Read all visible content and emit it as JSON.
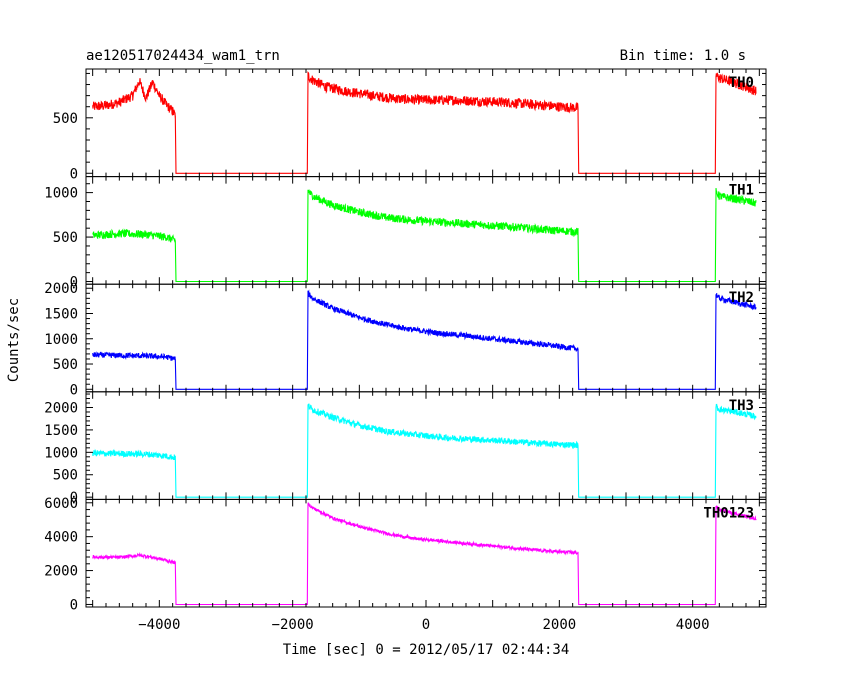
{
  "chart_data": {
    "type": "line",
    "title": "ae120517024434_wam1_trn",
    "subtitle": "Bin time: 1.0 s",
    "xlabel": "Time [sec] 0 = 2012/05/17 02:44:34",
    "ylabel": "Counts/sec",
    "xlim": [
      -5100,
      5100
    ],
    "x_ticks": [
      -4000,
      -2000,
      0,
      2000,
      4000
    ],
    "x_tick_labels": [
      "−4000",
      "−2000",
      "0",
      "2000",
      "4000"
    ],
    "grid": false,
    "panels": [
      {
        "name": "TH0",
        "color": "#ff0000",
        "ylim": [
          -30,
          940
        ],
        "y_ticks": [
          0,
          500
        ],
        "y_tick_labels": [
          "0",
          "500"
        ],
        "x": [
          -5000,
          -4800,
          -4600,
          -4400,
          -4300,
          -4200,
          -4100,
          -4000,
          -3900,
          -3800,
          -3760,
          -3750,
          -1780,
          -1770,
          -1700,
          -1500,
          -1200,
          -800,
          -400,
          0,
          400,
          800,
          1200,
          1600,
          2000,
          2280,
          2290,
          4340,
          4350,
          4400,
          4600,
          4800,
          4950
        ],
        "y": [
          600,
          610,
          640,
          700,
          830,
          680,
          820,
          700,
          620,
          560,
          520,
          0,
          0,
          880,
          840,
          780,
          740,
          700,
          670,
          660,
          660,
          650,
          640,
          620,
          600,
          590,
          0,
          0,
          880,
          860,
          820,
          780,
          740
        ],
        "noise": 45
      },
      {
        "name": "TH1",
        "color": "#00ff00",
        "ylim": [
          -30,
          1180
        ],
        "y_ticks": [
          0,
          500,
          1000
        ],
        "y_tick_labels": [
          "0",
          "500",
          "1000"
        ],
        "x": [
          -5000,
          -4600,
          -4200,
          -3900,
          -3760,
          -3750,
          -1780,
          -1770,
          -1700,
          -1400,
          -1000,
          -600,
          -200,
          200,
          600,
          1000,
          1400,
          1800,
          2280,
          2290,
          4340,
          4350,
          4400,
          4700,
          4950
        ],
        "y": [
          520,
          540,
          530,
          500,
          460,
          0,
          0,
          1020,
          960,
          860,
          780,
          720,
          690,
          670,
          650,
          630,
          610,
          580,
          560,
          0,
          0,
          1010,
          960,
          920,
          880
        ],
        "noise": 45
      },
      {
        "name": "TH2",
        "color": "#0000ff",
        "ylim": [
          -50,
          2080
        ],
        "y_ticks": [
          0,
          500,
          1000,
          1500,
          2000
        ],
        "y_tick_labels": [
          "0",
          "500",
          "1000",
          "1500",
          "2000"
        ],
        "x": [
          -5000,
          -4600,
          -4200,
          -3900,
          -3760,
          -3750,
          -1780,
          -1770,
          -1700,
          -1400,
          -1000,
          -600,
          -200,
          200,
          600,
          1000,
          1400,
          1800,
          2280,
          2290,
          4340,
          4350,
          4400,
          4700,
          4950
        ],
        "y": [
          680,
          670,
          660,
          640,
          600,
          0,
          0,
          1900,
          1800,
          1600,
          1420,
          1280,
          1180,
          1110,
          1060,
          1000,
          940,
          880,
          800,
          0,
          0,
          1880,
          1800,
          1700,
          1620
        ],
        "noise": 55
      },
      {
        "name": "TH3",
        "color": "#00ffff",
        "ylim": [
          -50,
          2350
        ],
        "y_ticks": [
          0,
          500,
          1000,
          1500,
          2000
        ],
        "y_tick_labels": [
          "0",
          "500",
          "1000",
          "1500",
          "2000"
        ],
        "x": [
          -5000,
          -4600,
          -4200,
          -3900,
          -3760,
          -3750,
          -1780,
          -1770,
          -1700,
          -1400,
          -1000,
          -600,
          -200,
          200,
          600,
          1000,
          1400,
          1800,
          2280,
          2290,
          4340,
          4350,
          4400,
          4700,
          4950
        ],
        "y": [
          980,
          970,
          960,
          920,
          880,
          0,
          0,
          2050,
          1950,
          1780,
          1600,
          1470,
          1400,
          1340,
          1300,
          1270,
          1230,
          1190,
          1160,
          0,
          0,
          2020,
          1960,
          1880,
          1800
        ],
        "noise": 70
      },
      {
        "name": "TH0123",
        "color": "#ff00ff",
        "ylim": [
          -150,
          6200
        ],
        "y_ticks": [
          0,
          2000,
          4000,
          6000
        ],
        "y_tick_labels": [
          "0",
          "2000",
          "4000",
          "6000"
        ],
        "x": [
          -5000,
          -4600,
          -4300,
          -4200,
          -4000,
          -3900,
          -3760,
          -3750,
          -1780,
          -1770,
          -1700,
          -1400,
          -1000,
          -600,
          -200,
          200,
          600,
          1000,
          1400,
          1800,
          2280,
          2290,
          4340,
          4350,
          4400,
          4700,
          4950
        ],
        "y": [
          2800,
          2780,
          2900,
          2850,
          2700,
          2600,
          2450,
          0,
          0,
          5950,
          5700,
          5100,
          4600,
          4200,
          3900,
          3750,
          3600,
          3450,
          3300,
          3150,
          3050,
          0,
          0,
          5800,
          5600,
          5300,
          5050
        ],
        "noise": 90
      }
    ]
  }
}
